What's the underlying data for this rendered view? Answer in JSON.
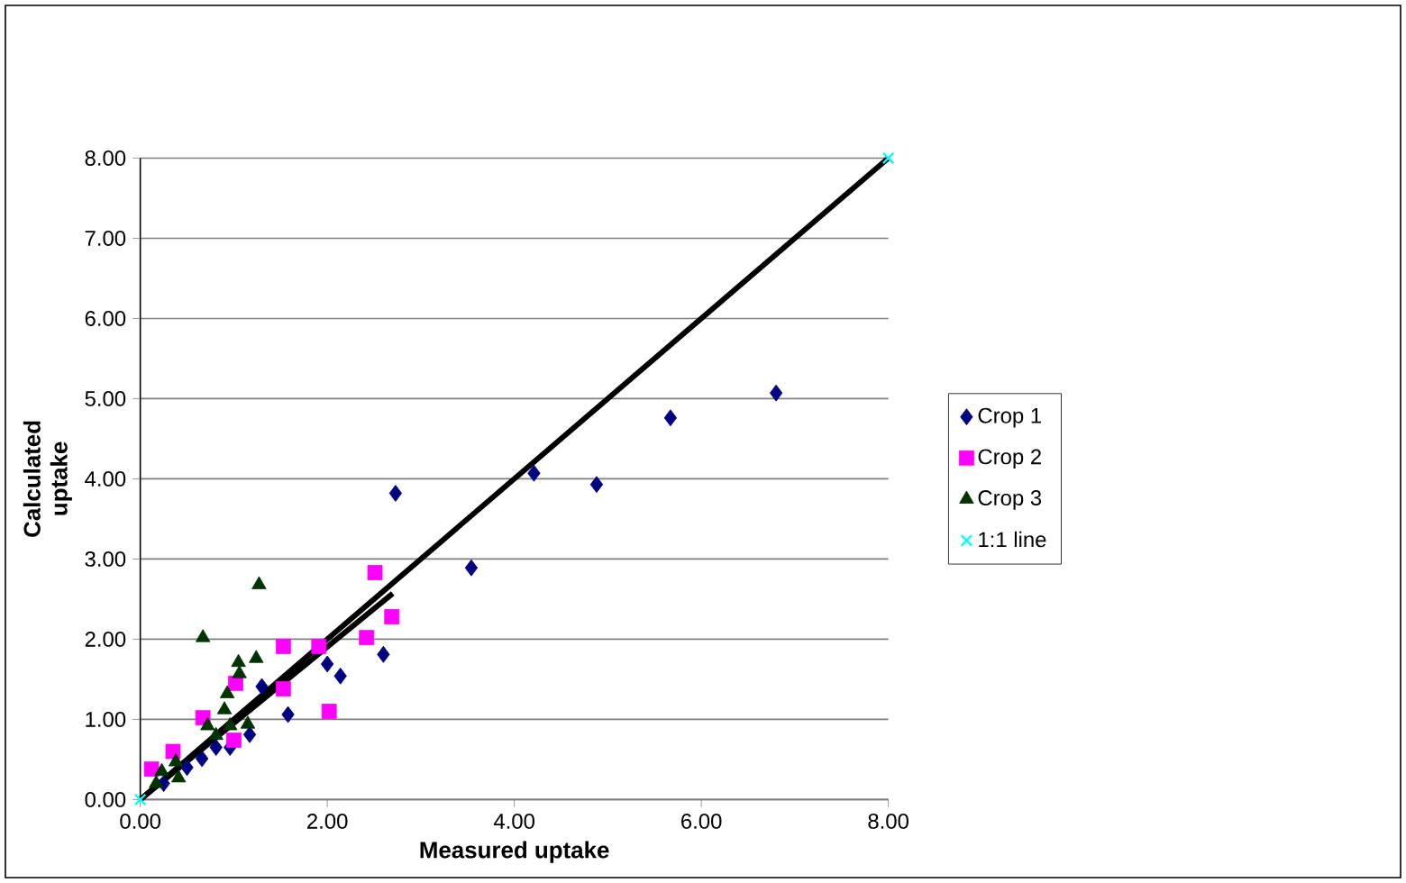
{
  "chart_data": {
    "type": "scatter",
    "xlabel": "Measured uptake",
    "ylabel": "Calculated uptake",
    "xlim": [
      0,
      8
    ],
    "ylim": [
      0,
      8
    ],
    "xticks": [
      {
        "value": 0,
        "label": "0.00"
      },
      {
        "value": 2,
        "label": "2.00"
      },
      {
        "value": 4,
        "label": "4.00"
      },
      {
        "value": 6,
        "label": "6.00"
      },
      {
        "value": 8,
        "label": "8.00"
      }
    ],
    "yticks": [
      {
        "value": 0,
        "label": "0.00"
      },
      {
        "value": 1,
        "label": "1.00"
      },
      {
        "value": 2,
        "label": "2.00"
      },
      {
        "value": 3,
        "label": "3.00"
      },
      {
        "value": 4,
        "label": "4.00"
      },
      {
        "value": 5,
        "label": "5.00"
      },
      {
        "value": 6,
        "label": "6.00"
      },
      {
        "value": 7,
        "label": "7.00"
      },
      {
        "value": 8,
        "label": "8.00"
      }
    ],
    "grid": "y",
    "legend": "right",
    "series": [
      {
        "type": "line",
        "color": "#000000",
        "marker": "none",
        "x": [
          0,
          8
        ],
        "values": [
          0,
          8
        ]
      },
      {
        "type": "line",
        "color": "#000000",
        "marker": "none",
        "x": [
          0,
          2.7
        ],
        "values": [
          0,
          2.57
        ]
      },
      {
        "name": "Crop 1",
        "color": "#000080",
        "marker": "diamond",
        "x": [
          2.73,
          4.21,
          3.54,
          2.6,
          2.14,
          2.0,
          1.58,
          1.3,
          1.17,
          0.96,
          0.81,
          0.66,
          4.88,
          5.67,
          6.8,
          0.25,
          0.5
        ],
        "values": [
          3.82,
          4.07,
          2.89,
          1.81,
          1.54,
          1.69,
          1.06,
          1.41,
          0.81,
          0.65,
          0.65,
          0.51,
          3.93,
          4.76,
          5.07,
          0.2,
          0.4
        ]
      },
      {
        "name": "Crop 2",
        "color": "#ff00ff",
        "marker": "square",
        "x": [
          2.51,
          2.69,
          2.42,
          1.91,
          2.02,
          1.53,
          1.53,
          1.02,
          0.67,
          1.0,
          0.35,
          0.12
        ],
        "values": [
          2.83,
          2.28,
          2.02,
          1.91,
          1.1,
          1.91,
          1.38,
          1.45,
          1.02,
          0.74,
          0.6,
          0.38
        ]
      },
      {
        "name": "Crop 3",
        "color": "#003300",
        "marker": "triangle",
        "x": [
          1.27,
          0.67,
          1.24,
          1.05,
          1.06,
          0.93,
          0.9,
          0.72,
          0.96,
          1.15,
          0.81,
          0.38,
          0.23,
          0.41,
          0.17
        ],
        "values": [
          2.68,
          2.02,
          1.76,
          1.71,
          1.57,
          1.32,
          1.12,
          0.92,
          0.92,
          0.94,
          0.8,
          0.47,
          0.35,
          0.27,
          0.2
        ]
      },
      {
        "name": "1:1 line",
        "color": "#00ffff",
        "marker": "cross",
        "x": [
          0,
          8
        ],
        "values": [
          0,
          8
        ]
      }
    ]
  }
}
